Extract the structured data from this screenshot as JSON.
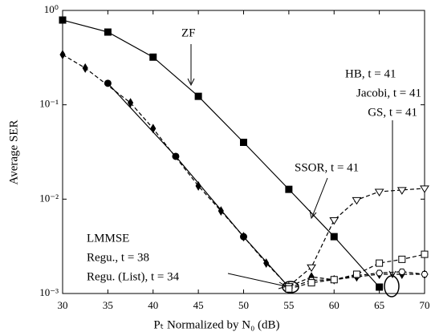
{
  "chart_data": {
    "type": "line",
    "xlabel": "Pₜ Normalized by N₀ (dB)",
    "ylabel": "Average SER",
    "xlim": [
      30,
      70
    ],
    "xticks": [
      30,
      35,
      40,
      45,
      50,
      55,
      60,
      65,
      70
    ],
    "ylim": [
      0.001,
      1
    ],
    "log_y": true,
    "yticks": [
      {
        "value": 1,
        "label": "10⁰"
      },
      {
        "value": 0.1,
        "label": "10⁻¹"
      },
      {
        "value": 0.01,
        "label": "10⁻²"
      },
      {
        "value": 0.001,
        "label": "10⁻³"
      }
    ],
    "grid": false,
    "annotations": [
      "ZF",
      "HB, t = 41",
      "Jacobi, t = 41",
      "GS, t = 41",
      "SSOR, t = 41",
      "LMMSE",
      "Regu., t = 38",
      "Regu. (List), t = 34"
    ],
    "series": [
      {
        "color": "#000000",
        "dash": false,
        "marker": "square",
        "filled": true,
        "x": [
          30,
          35,
          40,
          45,
          50,
          55,
          60,
          65
        ],
        "values": [
          0.79,
          0.59,
          0.32,
          0.123,
          0.04,
          0.0127,
          0.004,
          0.00117
        ]
      },
      {
        "color": "#000000",
        "dash": false,
        "marker": "circle",
        "filled": true,
        "x": [
          35,
          42.5,
          50,
          55
        ],
        "values": [
          0.169,
          0.0284,
          0.004,
          0.00117
        ]
      },
      {
        "color": "#000000",
        "dash": true,
        "marker": "diamond",
        "filled": true,
        "x": [
          30,
          32.5,
          37.5,
          40,
          45,
          47.5,
          50,
          52.5,
          55,
          57.5,
          60,
          62.5,
          65,
          67.5,
          70
        ],
        "values": [
          0.34,
          0.245,
          0.105,
          0.056,
          0.0138,
          0.0075,
          0.004,
          0.0021,
          0.00118,
          0.0015,
          0.0014,
          0.0015,
          0.0016,
          0.0016,
          0.0016
        ]
      },
      {
        "color": "#000000",
        "dash": true,
        "marker": "hexagon",
        "filled": false,
        "x": [
          55,
          57.5,
          60,
          62.5,
          65,
          67.5,
          70
        ],
        "values": [
          0.00115,
          0.00138,
          0.0014,
          0.00155,
          0.00165,
          0.0017,
          0.0016
        ]
      },
      {
        "color": "#000000",
        "dash": true,
        "marker": "triangle-down",
        "filled": false,
        "x": [
          55,
          57.5,
          60,
          62.5,
          65,
          67.5,
          70
        ],
        "values": [
          0.0012,
          0.0019,
          0.006,
          0.0098,
          0.012,
          0.0125,
          0.013
        ]
      },
      {
        "color": "#000000",
        "dash": true,
        "marker": "square",
        "filled": false,
        "x": [
          55,
          57.5,
          60,
          62.5,
          65,
          67.5,
          70
        ],
        "values": [
          0.00112,
          0.0013,
          0.0014,
          0.0016,
          0.0021,
          0.0023,
          0.0026
        ]
      }
    ]
  }
}
